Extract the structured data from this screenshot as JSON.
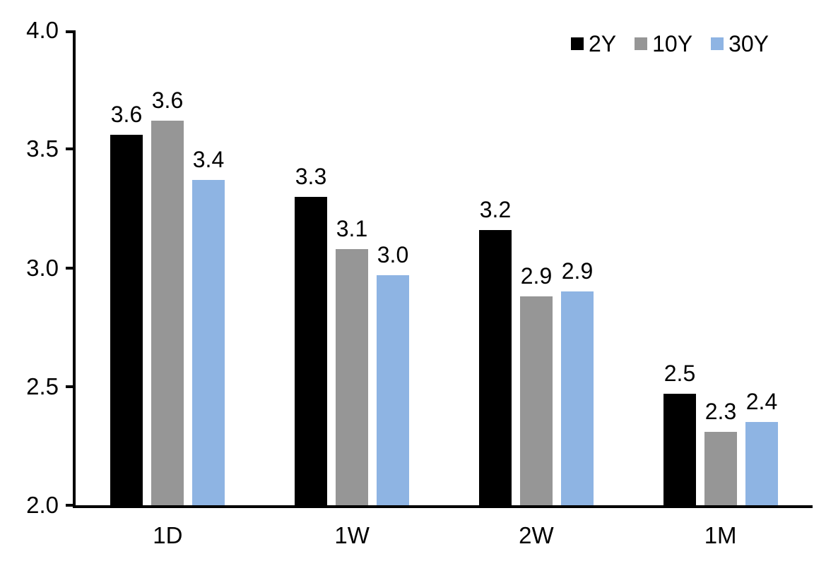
{
  "chart_data": {
    "type": "bar",
    "categories": [
      "1D",
      "1W",
      "2W",
      "1M"
    ],
    "series": [
      {
        "name": "2Y",
        "color": "#000000",
        "values": [
          3.56,
          3.3,
          3.16,
          2.47
        ],
        "labels": [
          "3.6",
          "3.3",
          "3.2",
          "2.5"
        ]
      },
      {
        "name": "10Y",
        "color": "#969696",
        "values": [
          3.62,
          3.08,
          2.88,
          2.31
        ],
        "labels": [
          "3.6",
          "3.1",
          "2.9",
          "2.3"
        ]
      },
      {
        "name": "30Y",
        "color": "#8EB4E3",
        "values": [
          3.37,
          2.97,
          2.9,
          2.35
        ],
        "labels": [
          "3.4",
          "3.0",
          "2.9",
          "2.4"
        ]
      }
    ],
    "ylim": [
      2.0,
      4.0
    ],
    "y_ticks": [
      "4.0",
      "3.5",
      "3.0",
      "2.5",
      "2.0"
    ],
    "grid": false,
    "legend_position": "top-right",
    "axis_color": "#000000",
    "text_color": "#000000"
  }
}
